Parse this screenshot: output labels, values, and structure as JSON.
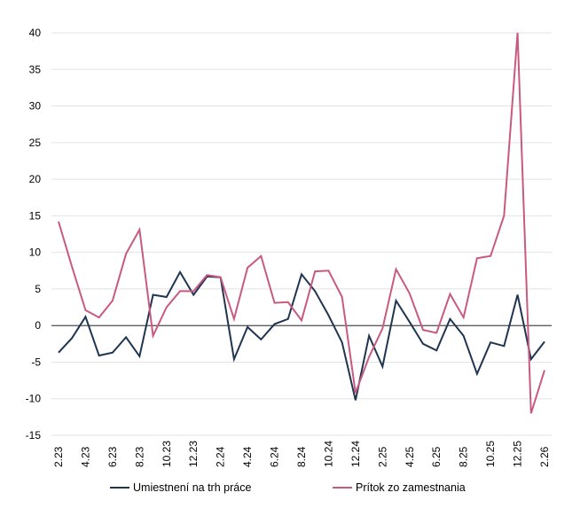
{
  "chart_data": {
    "type": "line",
    "title": "",
    "xlabel": "",
    "ylabel": "",
    "ylim": [
      -15,
      40
    ],
    "yticks": [
      -15,
      -10,
      -5,
      0,
      5,
      10,
      15,
      20,
      25,
      30,
      35,
      40
    ],
    "grid": true,
    "legend_position": "bottom",
    "x": [
      "2.23",
      "3.23",
      "4.23",
      "5.23",
      "6.23",
      "7.23",
      "8.23",
      "9.23",
      "10.23",
      "11.23",
      "12.23",
      "1.24",
      "2.24",
      "3.24",
      "4.24",
      "5.24",
      "6.24",
      "7.24",
      "8.24",
      "9.24",
      "10.24",
      "11.24",
      "12.24",
      "1.25",
      "2.25",
      "3.25",
      "4.25",
      "5.25",
      "6.25",
      "7.25",
      "8.25",
      "9.25",
      "10.25",
      "11.25",
      "12.25",
      "1.26",
      "2.26"
    ],
    "x_tick_labels": [
      "2.23",
      "",
      "4.23",
      "",
      "6.23",
      "",
      "8.23",
      "",
      "10.23",
      "",
      "12.23",
      "",
      "2.24",
      "",
      "4.24",
      "",
      "6.24",
      "",
      "8.24",
      "",
      "10.24",
      "",
      "12.24",
      "",
      "2.25",
      "",
      "4.25",
      "",
      "6.25",
      "",
      "8.25",
      "",
      "10.25",
      "",
      "12.25",
      "",
      "2.26"
    ],
    "series": [
      {
        "name": "Umiestnení na trh práce",
        "color": "#1f3552",
        "values": [
          -3.7,
          -1.7,
          1.2,
          -4.1,
          -3.7,
          -1.6,
          -4.2,
          4.2,
          3.9,
          7.3,
          4.2,
          6.7,
          6.6,
          -4.6,
          -0.2,
          -1.9,
          0.2,
          0.9,
          7.0,
          4.7,
          1.4,
          -2.3,
          -10.2,
          -1.4,
          -5.6,
          3.4,
          0.5,
          -2.5,
          -3.4,
          0.9,
          -1.4,
          -6.6,
          -2.3,
          -2.8,
          4.2,
          -4.6,
          -2.2
        ]
      },
      {
        "name": "Prítok zo zamestnania",
        "color": "#c85a82",
        "values": [
          14.2,
          8.0,
          2.1,
          1.1,
          3.4,
          9.8,
          13.1,
          -1.4,
          2.5,
          4.7,
          4.7,
          6.9,
          6.6,
          0.9,
          7.9,
          9.5,
          3.1,
          3.2,
          0.7,
          7.4,
          7.5,
          3.9,
          -9.2,
          -4.3,
          -0.4,
          7.7,
          4.4,
          -0.6,
          -1.0,
          4.3,
          1.1,
          9.2,
          9.5,
          15.0,
          40.0,
          -12.0,
          -6.1
        ]
      }
    ]
  }
}
